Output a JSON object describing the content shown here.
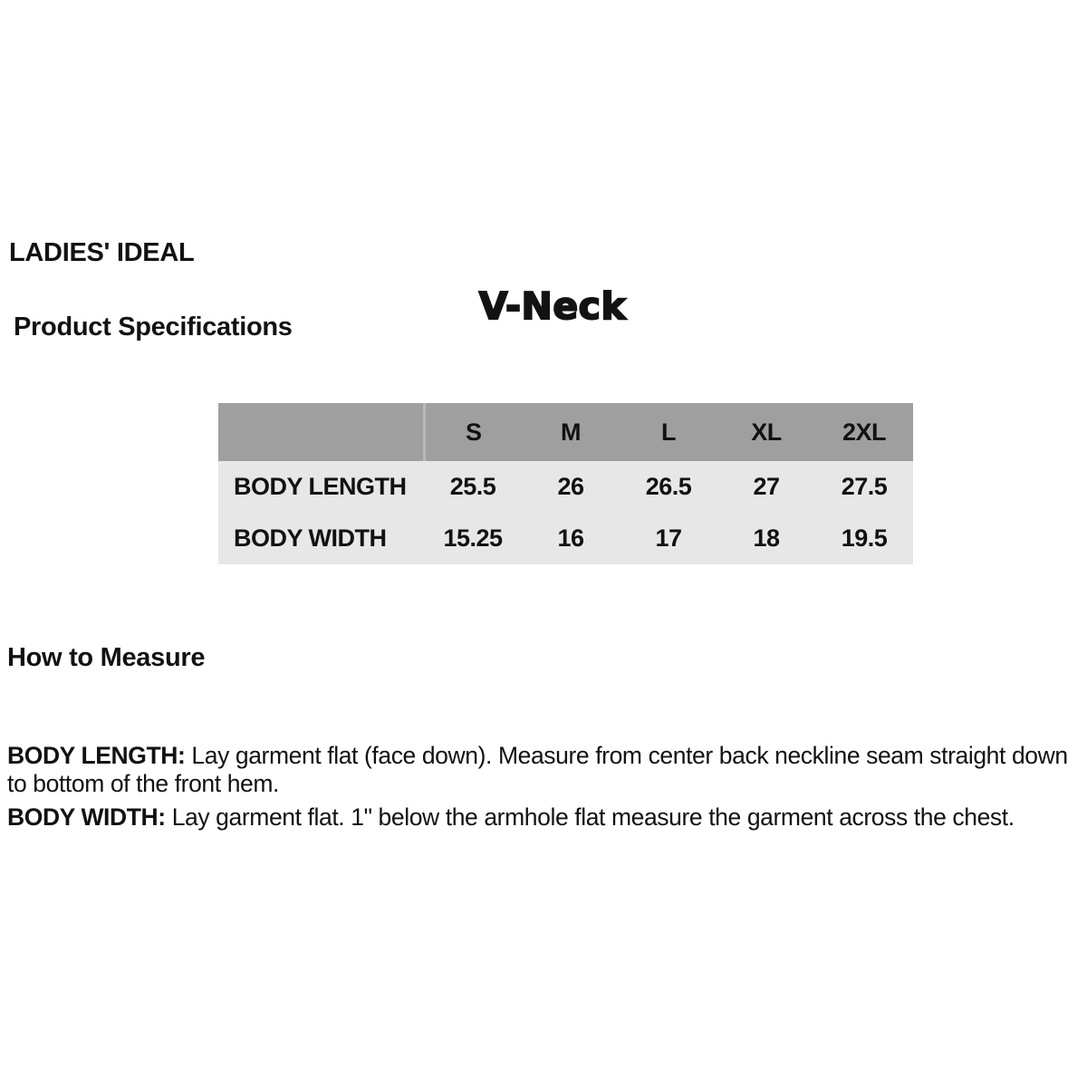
{
  "page": {
    "brand": "LADIES' IDEAL",
    "subtitle": "Product Specifications",
    "product_title": "V-Neck"
  },
  "spec_table": {
    "columns": [
      "S",
      "M",
      "L",
      "XL",
      "2XL"
    ],
    "rows": [
      {
        "label": "BODY LENGTH",
        "values": [
          "25.5",
          "26",
          "26.5",
          "27",
          "27.5"
        ]
      },
      {
        "label": "BODY WIDTH",
        "values": [
          "15.25",
          "16",
          "17",
          "18",
          "19.5"
        ]
      }
    ],
    "colors": {
      "header_bg": "#9f9f9f",
      "body_bg": "#e7e7e7",
      "header_divider": "#b9b9b9",
      "text": "#121212"
    }
  },
  "how_to_measure": {
    "heading": "How to Measure",
    "items": [
      {
        "term": "BODY LENGTH:",
        "description": "Lay garment flat (face down). Measure from center back neckline seam straight down to bottom of the front hem."
      },
      {
        "term": "BODY WIDTH:",
        "description": "Lay garment flat. 1\" below the armhole flat measure the garment across the chest."
      }
    ]
  }
}
